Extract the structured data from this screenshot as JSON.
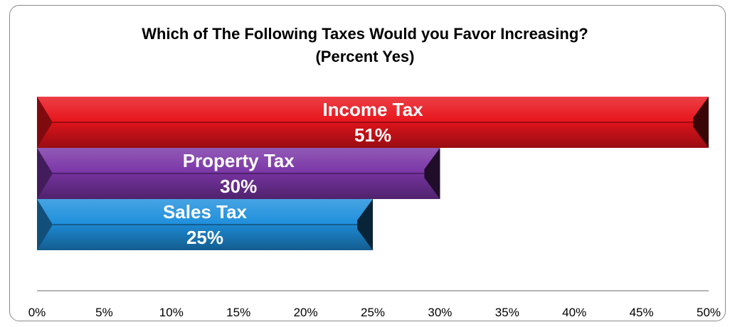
{
  "chart_data": {
    "type": "bar",
    "orientation": "horizontal",
    "title": "Which of The Following Taxes Would you Favor Increasing?",
    "subtitle": "(Percent Yes)",
    "categories": [
      "Income Tax",
      "Property Tax",
      "Sales Tax"
    ],
    "values": [
      51,
      30,
      25
    ],
    "value_labels": [
      "51%",
      "30%",
      "25%"
    ],
    "colors": [
      "#e8141c",
      "#7a35a6",
      "#1e8fdc"
    ],
    "xlim": [
      0,
      50
    ],
    "x_ticks": [
      0,
      5,
      10,
      15,
      20,
      25,
      30,
      35,
      40,
      45,
      50
    ],
    "x_tick_labels": [
      "0%",
      "5%",
      "10%",
      "15%",
      "20%",
      "25%",
      "30%",
      "35%",
      "40%",
      "45%",
      "50%"
    ],
    "grid": false,
    "legend": "none"
  }
}
